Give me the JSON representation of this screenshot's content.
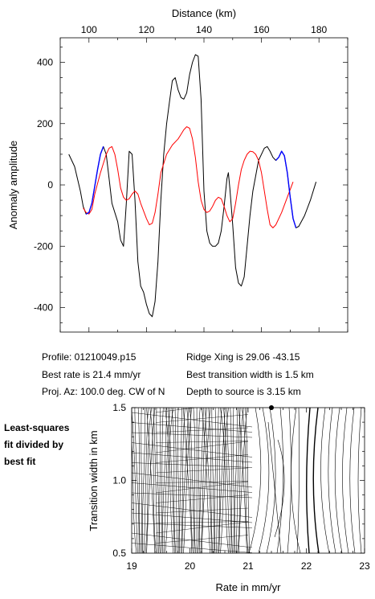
{
  "colors": {
    "observed": "#000000",
    "model": "#ff0000",
    "fit_window": "#0000ff",
    "contour": "#000000"
  },
  "chart_data": [
    {
      "type": "line",
      "title": "",
      "xlabel": "Distance (km)",
      "ylabel": "Anomaly amplitude",
      "xlim": [
        90,
        190
      ],
      "ylim": [
        -480,
        480
      ],
      "xticks": [
        100,
        120,
        140,
        160,
        180
      ],
      "yticks": [
        -400,
        -200,
        0,
        200,
        400
      ],
      "x_axis_position": "top",
      "grid": false,
      "series": [
        {
          "color": "#000000",
          "points": [
            [
              93,
              100
            ],
            [
              95,
              60
            ],
            [
              97,
              -20
            ],
            [
              98,
              -70
            ],
            [
              99,
              -95
            ],
            [
              100,
              -90
            ],
            [
              101,
              -60
            ],
            [
              103,
              50
            ],
            [
              104,
              100
            ],
            [
              105,
              125
            ],
            [
              106,
              100
            ],
            [
              107,
              20
            ],
            [
              108,
              -60
            ],
            [
              110,
              -120
            ],
            [
              111,
              -180
            ],
            [
              112,
              -200
            ],
            [
              113,
              -60
            ],
            [
              114,
              110
            ],
            [
              115,
              100
            ],
            [
              116,
              -50
            ],
            [
              117,
              -250
            ],
            [
              118,
              -330
            ],
            [
              119,
              -350
            ],
            [
              120,
              -390
            ],
            [
              121,
              -420
            ],
            [
              122,
              -430
            ],
            [
              123,
              -380
            ],
            [
              124,
              -250
            ],
            [
              125,
              -50
            ],
            [
              126,
              100
            ],
            [
              127,
              200
            ],
            [
              128,
              270
            ],
            [
              129,
              340
            ],
            [
              130,
              350
            ],
            [
              131,
              310
            ],
            [
              132,
              285
            ],
            [
              133,
              280
            ],
            [
              134,
              300
            ],
            [
              135,
              360
            ],
            [
              136,
              400
            ],
            [
              137,
              425
            ],
            [
              138,
              420
            ],
            [
              139,
              280
            ],
            [
              140,
              -20
            ],
            [
              141,
              -150
            ],
            [
              142,
              -190
            ],
            [
              143,
              -200
            ],
            [
              144,
              -200
            ],
            [
              145,
              -190
            ],
            [
              146,
              -150
            ],
            [
              147,
              -70
            ],
            [
              148,
              20
            ],
            [
              148.5,
              40
            ],
            [
              149,
              -10
            ],
            [
              150,
              -130
            ],
            [
              151,
              -270
            ],
            [
              152,
              -320
            ],
            [
              153,
              -330
            ],
            [
              154,
              -300
            ],
            [
              155,
              -200
            ],
            [
              156,
              -100
            ],
            [
              157,
              -20
            ],
            [
              159,
              80
            ],
            [
              161,
              120
            ],
            [
              162,
              125
            ],
            [
              163,
              110
            ],
            [
              164,
              90
            ],
            [
              165,
              80
            ],
            [
              166,
              90
            ],
            [
              167,
              110
            ],
            [
              168,
              95
            ],
            [
              169,
              40
            ],
            [
              170,
              -40
            ],
            [
              171,
              -110
            ],
            [
              172,
              -140
            ],
            [
              173,
              -135
            ],
            [
              175,
              -100
            ],
            [
              177,
              -50
            ],
            [
              179,
              10
            ]
          ]
        },
        {
          "color": "#ff0000",
          "points": [
            [
              98,
              -75
            ],
            [
              99,
              -90
            ],
            [
              100,
              -95
            ],
            [
              101,
              -80
            ],
            [
              102,
              -30
            ],
            [
              104,
              40
            ],
            [
              106,
              100
            ],
            [
              107,
              120
            ],
            [
              108,
              125
            ],
            [
              109,
              100
            ],
            [
              110,
              50
            ],
            [
              111,
              -10
            ],
            [
              112,
              -40
            ],
            [
              113,
              -50
            ],
            [
              114,
              -45
            ],
            [
              115,
              -30
            ],
            [
              116,
              -20
            ],
            [
              117,
              -30
            ],
            [
              118,
              -60
            ],
            [
              120,
              -110
            ],
            [
              121,
              -130
            ],
            [
              122,
              -125
            ],
            [
              123,
              -90
            ],
            [
              124,
              -30
            ],
            [
              125,
              40
            ],
            [
              127,
              100
            ],
            [
              129,
              130
            ],
            [
              131,
              150
            ],
            [
              132,
              165
            ],
            [
              133,
              180
            ],
            [
              134,
              190
            ],
            [
              135,
              185
            ],
            [
              136,
              150
            ],
            [
              137,
              90
            ],
            [
              138,
              10
            ],
            [
              139,
              -50
            ],
            [
              140,
              -80
            ],
            [
              141,
              -90
            ],
            [
              142,
              -85
            ],
            [
              143,
              -70
            ],
            [
              144,
              -50
            ],
            [
              145,
              -40
            ],
            [
              146,
              -45
            ],
            [
              147,
              -70
            ],
            [
              148,
              -100
            ],
            [
              149,
              -120
            ],
            [
              150,
              -110
            ],
            [
              151,
              -60
            ],
            [
              152,
              0
            ],
            [
              153,
              50
            ],
            [
              154,
              80
            ],
            [
              155,
              100
            ],
            [
              156,
              110
            ],
            [
              157,
              108
            ],
            [
              158,
              100
            ],
            [
              159,
              80
            ],
            [
              160,
              40
            ],
            [
              161,
              -20
            ],
            [
              162,
              -80
            ],
            [
              163,
              -130
            ],
            [
              164,
              -140
            ],
            [
              165,
              -130
            ],
            [
              167,
              -90
            ],
            [
              169,
              -40
            ],
            [
              171,
              10
            ]
          ]
        },
        {
          "color": "#0000ff",
          "points": [
            [
              99,
              -95
            ],
            [
              100,
              -90
            ],
            [
              101,
              -60
            ],
            [
              103,
              50
            ],
            [
              104,
              100
            ],
            [
              105,
              125
            ]
          ]
        },
        {
          "color": "#0000ff",
          "points": [
            [
              165,
              80
            ],
            [
              166,
              90
            ],
            [
              167,
              110
            ],
            [
              168,
              95
            ],
            [
              169,
              40
            ],
            [
              170,
              -40
            ],
            [
              171,
              -110
            ],
            [
              172,
              -140
            ]
          ]
        }
      ]
    },
    {
      "type": "contour",
      "title": "",
      "xlabel": "Rate in mm/yr",
      "ylabel": "Transition width in km",
      "xlim": [
        19,
        23
      ],
      "ylim": [
        0.5,
        1.5
      ],
      "xticks": [
        19,
        20,
        21,
        22,
        23
      ],
      "yticks": [
        0.5,
        1.0,
        1.5
      ],
      "best_fit_marker": {
        "rate": 21.4,
        "width": 1.5
      },
      "grid": false
    }
  ],
  "info": {
    "profile": "Profile: 01210049.p15",
    "best_rate": "Best rate is 21.4 mm/yr",
    "proj_az": "Proj. Az: 100.0 deg. CW of N",
    "ridge_xing": "Ridge Xing is 29.06 -43.15",
    "best_width": "Best transition width is 1.5 km",
    "depth": "Depth to source is   3.15 km"
  },
  "side_note": [
    "Least-squares",
    "fit divided by",
    "best fit"
  ],
  "tick_labels": {
    "top_x": [
      "100",
      "120",
      "140",
      "160",
      "180"
    ],
    "top_y": [
      "400",
      "200",
      "0",
      "-200",
      "-400"
    ],
    "bottom_x": [
      "19",
      "20",
      "21",
      "22",
      "23"
    ],
    "bottom_y": [
      "1.5",
      "1.0",
      "0.5"
    ]
  }
}
